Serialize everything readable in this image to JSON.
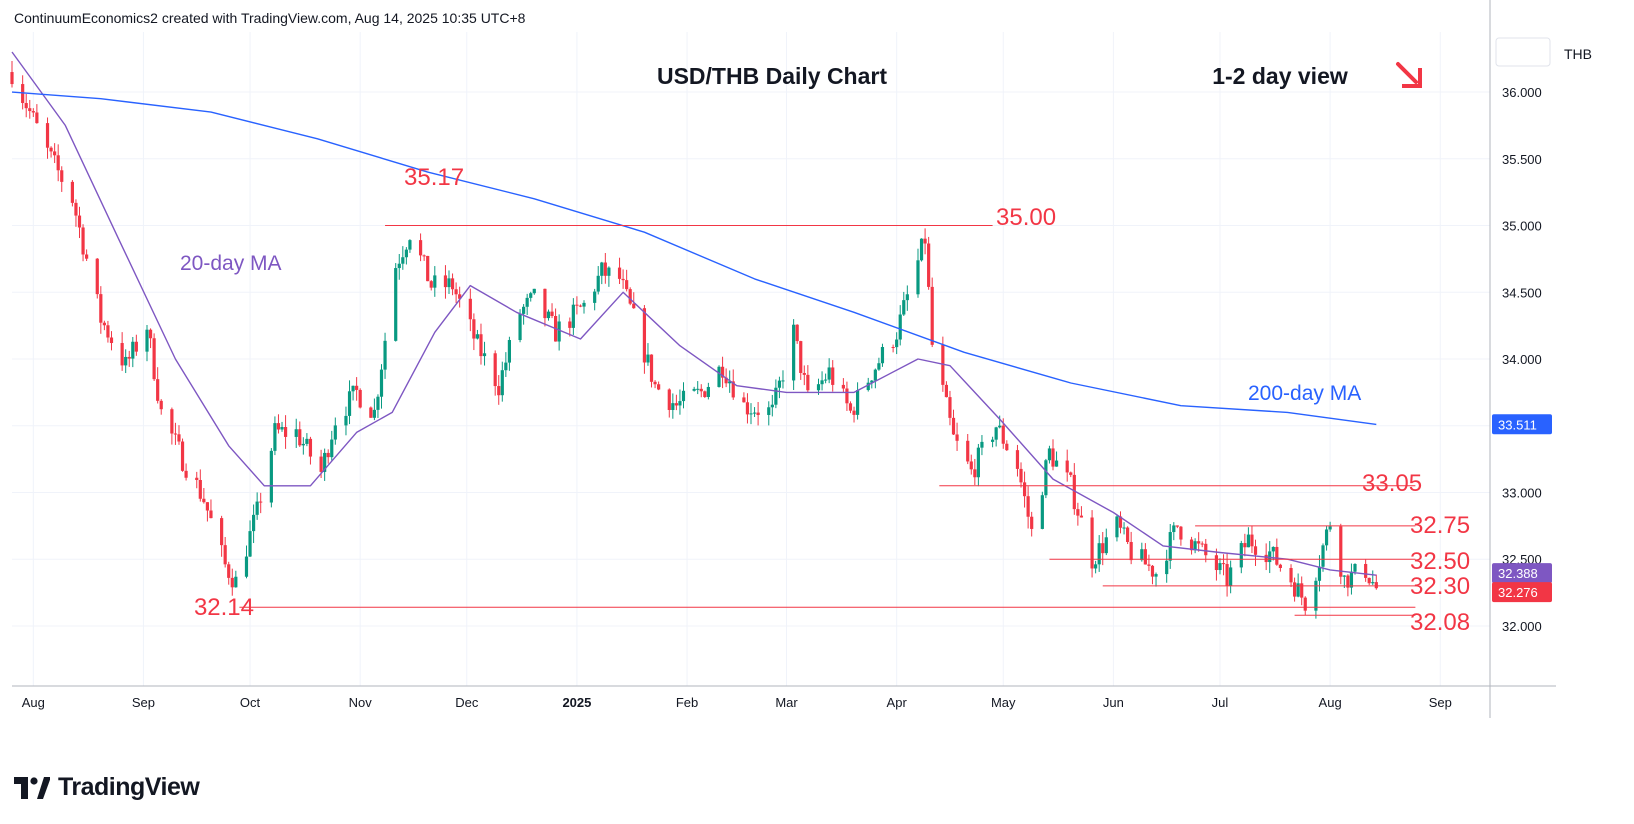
{
  "attribution": "ContinuumEconomics2 created with TradingView.com, Aug 14, 2025 10:35 UTC+8",
  "brand": "TradingView",
  "currency_label": "THB",
  "colors": {
    "up": "#089981",
    "down": "#f23645",
    "ma20": "#7e57c2",
    "ma200": "#2962ff",
    "level": "#f23645",
    "arrow": "#f23645"
  },
  "chart_data": {
    "type": "candlestick",
    "title": "USD/THB Daily Chart",
    "view_label": "1-2 day view",
    "view_direction": "down-right arrow",
    "ylim": [
      31.55,
      36.45
    ],
    "y_ticks": [
      "32.000",
      "32.500",
      "33.000",
      "33.500",
      "34.000",
      "34.500",
      "35.000",
      "35.500",
      "36.000"
    ],
    "x_ticks": [
      "Aug",
      "Sep",
      "Oct",
      "Nov",
      "Dec",
      "2025",
      "Feb",
      "Mar",
      "Apr",
      "May",
      "Jun",
      "Jul",
      "Aug",
      "Sep"
    ],
    "x_range": [
      "2024-07-26",
      "2025-09-15"
    ],
    "price_path": [
      [
        "2024-07-26",
        36.15
      ],
      [
        "2024-08-05",
        35.55
      ],
      [
        "2024-08-12",
        35.2
      ],
      [
        "2024-08-20",
        34.3
      ],
      [
        "2024-08-27",
        33.95
      ],
      [
        "2024-09-02",
        34.25
      ],
      [
        "2024-09-06",
        33.6
      ],
      [
        "2024-09-12",
        33.25
      ],
      [
        "2024-09-18",
        32.95
      ],
      [
        "2024-09-24",
        32.45
      ],
      [
        "2024-09-27",
        32.33
      ],
      [
        "2024-10-03",
        32.85
      ],
      [
        "2024-10-08",
        33.45
      ],
      [
        "2024-10-14",
        33.45
      ],
      [
        "2024-10-21",
        33.15
      ],
      [
        "2024-10-25",
        33.55
      ],
      [
        "2024-10-31",
        33.75
      ],
      [
        "2024-11-05",
        33.6
      ],
      [
        "2024-11-11",
        34.7
      ],
      [
        "2024-11-15",
        34.95
      ],
      [
        "2024-11-21",
        34.55
      ],
      [
        "2024-11-27",
        34.55
      ],
      [
        "2024-12-04",
        34.1
      ],
      [
        "2024-12-10",
        33.8
      ],
      [
        "2024-12-16",
        34.35
      ],
      [
        "2024-12-20",
        34.45
      ],
      [
        "2024-12-26",
        34.2
      ],
      [
        "2025-01-03",
        34.4
      ],
      [
        "2025-01-08",
        34.65
      ],
      [
        "2025-01-13",
        34.6
      ],
      [
        "2025-01-17",
        34.3
      ],
      [
        "2025-01-23",
        33.8
      ],
      [
        "2025-01-29",
        33.65
      ],
      [
        "2025-02-05",
        33.75
      ],
      [
        "2025-02-11",
        33.95
      ],
      [
        "2025-02-17",
        33.65
      ],
      [
        "2025-02-25",
        33.6
      ],
      [
        "2025-03-03",
        34.2
      ],
      [
        "2025-03-07",
        33.7
      ],
      [
        "2025-03-13",
        33.9
      ],
      [
        "2025-03-19",
        33.6
      ],
      [
        "2025-03-25",
        33.9
      ],
      [
        "2025-04-01",
        34.2
      ],
      [
        "2025-04-09",
        34.9
      ],
      [
        "2025-04-11",
        34.1
      ],
      [
        "2025-04-17",
        33.4
      ],
      [
        "2025-04-22",
        33.15
      ],
      [
        "2025-04-29",
        33.5
      ],
      [
        "2025-05-05",
        33.2
      ],
      [
        "2025-05-09",
        32.7
      ],
      [
        "2025-05-14",
        33.3
      ],
      [
        "2025-05-20",
        33.05
      ],
      [
        "2025-05-26",
        32.5
      ],
      [
        "2025-06-02",
        32.75
      ],
      [
        "2025-06-06",
        32.55
      ],
      [
        "2025-06-13",
        32.4
      ],
      [
        "2025-06-19",
        32.75
      ],
      [
        "2025-06-26",
        32.55
      ],
      [
        "2025-07-03",
        32.35
      ],
      [
        "2025-07-09",
        32.65
      ],
      [
        "2025-07-15",
        32.55
      ],
      [
        "2025-07-21",
        32.35
      ],
      [
        "2025-07-25",
        32.18
      ],
      [
        "2025-07-29",
        32.5
      ],
      [
        "2025-08-01",
        32.78
      ],
      [
        "2025-08-05",
        32.35
      ],
      [
        "2025-08-11",
        32.42
      ],
      [
        "2025-08-14",
        32.28
      ]
    ],
    "series": [
      {
        "name": "20-day MA",
        "points": [
          [
            "2024-07-26",
            36.3
          ],
          [
            "2024-08-10",
            35.75
          ],
          [
            "2024-08-25",
            34.9
          ],
          [
            "2024-09-10",
            34.0
          ],
          [
            "2024-09-25",
            33.35
          ],
          [
            "2024-10-05",
            33.05
          ],
          [
            "2024-10-18",
            33.05
          ],
          [
            "2024-10-31",
            33.45
          ],
          [
            "2024-11-10",
            33.6
          ],
          [
            "2024-11-22",
            34.2
          ],
          [
            "2024-12-02",
            34.55
          ],
          [
            "2024-12-15",
            34.35
          ],
          [
            "2025-01-02",
            34.15
          ],
          [
            "2025-01-14",
            34.5
          ],
          [
            "2025-01-30",
            34.1
          ],
          [
            "2025-02-15",
            33.8
          ],
          [
            "2025-03-01",
            33.75
          ],
          [
            "2025-03-20",
            33.75
          ],
          [
            "2025-04-07",
            34.0
          ],
          [
            "2025-04-16",
            33.95
          ],
          [
            "2025-04-30",
            33.55
          ],
          [
            "2025-05-15",
            33.1
          ],
          [
            "2025-06-01",
            32.85
          ],
          [
            "2025-06-15",
            32.6
          ],
          [
            "2025-07-01",
            32.55
          ],
          [
            "2025-07-20",
            32.5
          ],
          [
            "2025-08-01",
            32.42
          ],
          [
            "2025-08-14",
            32.38
          ]
        ]
      },
      {
        "name": "200-day MA",
        "points": [
          [
            "2024-07-26",
            36.0
          ],
          [
            "2024-08-20",
            35.95
          ],
          [
            "2024-09-20",
            35.85
          ],
          [
            "2024-10-20",
            35.65
          ],
          [
            "2024-11-20",
            35.4
          ],
          [
            "2024-12-20",
            35.2
          ],
          [
            "2025-01-20",
            34.95
          ],
          [
            "2025-02-20",
            34.6
          ],
          [
            "2025-03-20",
            34.35
          ],
          [
            "2025-04-20",
            34.05
          ],
          [
            "2025-05-20",
            33.82
          ],
          [
            "2025-06-20",
            33.65
          ],
          [
            "2025-07-20",
            33.6
          ],
          [
            "2025-08-14",
            33.51
          ]
        ]
      }
    ],
    "levels": [
      {
        "label": "35.17",
        "value": 35.17,
        "from": "2024-11-08",
        "to": "2024-11-08",
        "kind": "label"
      },
      {
        "label": "35.00",
        "value": 35.0,
        "from": "2024-11-08",
        "to": "2025-04-28",
        "kind": "line"
      },
      {
        "label": "33.05",
        "value": 33.05,
        "from": "2025-04-13",
        "to": "2025-08-25",
        "kind": "line"
      },
      {
        "label": "32.75",
        "value": 32.75,
        "from": "2025-06-24",
        "to": "2025-08-25",
        "kind": "line"
      },
      {
        "label": "32.50",
        "value": 32.5,
        "from": "2025-05-14",
        "to": "2025-08-25",
        "kind": "line"
      },
      {
        "label": "32.30",
        "value": 32.3,
        "from": "2025-05-29",
        "to": "2025-08-25",
        "kind": "line"
      },
      {
        "label": "32.14",
        "value": 32.14,
        "from": "2024-09-28",
        "to": "2025-08-25",
        "kind": "line"
      },
      {
        "label": "32.08",
        "value": 32.08,
        "from": "2025-07-22",
        "to": "2025-08-25",
        "kind": "line"
      }
    ],
    "annotations": [
      {
        "text": "20-day MA",
        "date": "2024-08-31",
        "value": 34.7,
        "color": "#7e57c2"
      },
      {
        "text": "200-day MA",
        "date": "2025-06-13",
        "value": 33.72,
        "color": "#2962ff"
      }
    ],
    "price_tags": [
      {
        "text": "33.511",
        "value": 33.511,
        "color": "#2962ff"
      },
      {
        "text": "32.388",
        "value": 32.388,
        "color": "#7e57c2"
      },
      {
        "text": "32.276",
        "value": 32.276,
        "color": "#f23645"
      }
    ]
  }
}
